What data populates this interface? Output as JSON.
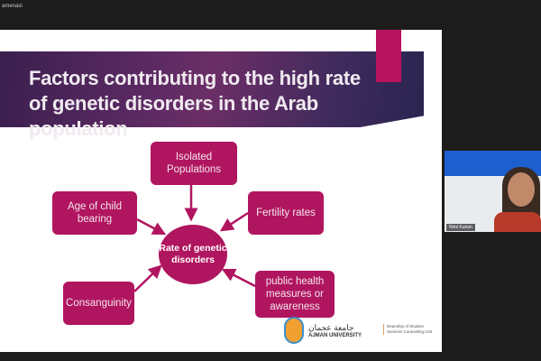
{
  "meeting": {
    "top_label": "amenasi"
  },
  "slide": {
    "title": "Factors contributing to the high rate of genetic disorders in the Arab population",
    "center": "Rate of genetic disorders",
    "factors": {
      "isolated": "Isolated Populations",
      "age": "Age of child bearing",
      "fertility": "Fertility rates",
      "consanguinity": "Consanguinity",
      "public_health": "public health measures or awareness"
    },
    "logo": {
      "arabic": "جامعة عجمان",
      "english": "AJMAN UNIVERSITY"
    },
    "department": "Deanship of Student Services Counseling Unit",
    "accent_color": "#b0155f"
  },
  "webcam": {
    "participant_name": "Nimi Kurian"
  }
}
